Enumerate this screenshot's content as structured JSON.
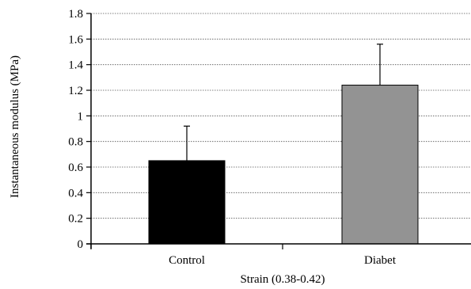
{
  "chart_data": {
    "type": "bar",
    "title": "",
    "xlabel": "Strain (0.38-0.42)",
    "ylabel": "Instantaneous modulus (MPa)",
    "categories": [
      "Control",
      "Diabet"
    ],
    "values": [
      0.65,
      1.24
    ],
    "error_bars": [
      0.27,
      0.32
    ],
    "bar_colors": [
      "#000000",
      "#939393"
    ],
    "ylim": [
      0,
      1.8
    ],
    "yticks": [
      "0",
      "0.2",
      "0.4",
      "0.6",
      "0.8",
      "1",
      "1.2",
      "1.4",
      "1.6",
      "1.8"
    ],
    "grid": "horizontal dotted",
    "legend": "none"
  }
}
